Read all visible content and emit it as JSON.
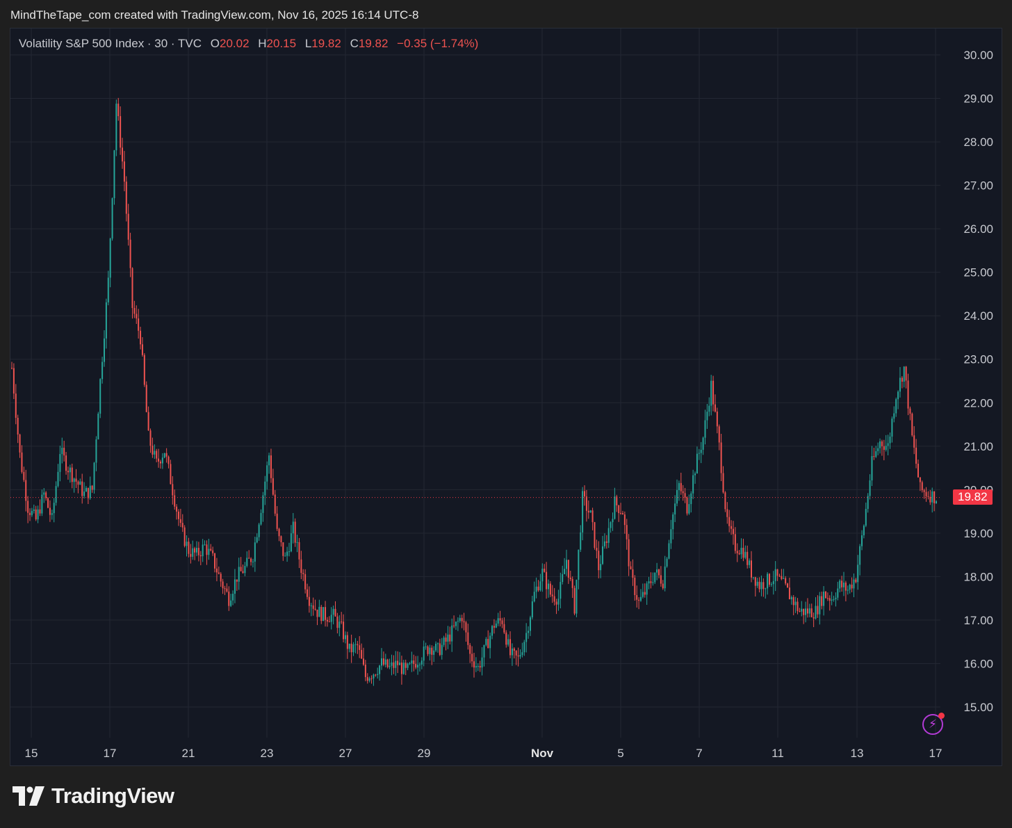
{
  "header": {
    "attribution": "MindTheTape_com created with TradingView.com, Nov 16, 2025 16:14 UTC-8"
  },
  "legend": {
    "symbol": "Volatility S&P 500 Index · 30 · TVC",
    "open_label": "O",
    "open": "20.02",
    "high_label": "H",
    "high": "20.15",
    "low_label": "L",
    "low": "19.82",
    "close_label": "C",
    "close": "19.82",
    "change": "−0.35 (−1.74%)"
  },
  "last_price_tag": "19.82",
  "footer": {
    "brand": "TradingView"
  },
  "colors": {
    "up": "#26a69a",
    "down": "#ef5350",
    "background": "#141823",
    "grid": "#232733",
    "price_line": "#f23645"
  },
  "icons": {
    "quick-trade": "lightning-bolt-icon"
  },
  "chart_data": {
    "type": "candlestick",
    "interval": "30",
    "last_price": 19.82,
    "y_ticks": [
      "15.00",
      "16.00",
      "17.00",
      "18.00",
      "19.00",
      "20.00",
      "21.00",
      "22.00",
      "23.00",
      "24.00",
      "25.00",
      "26.00",
      "27.00",
      "28.00",
      "29.00",
      "30.00"
    ],
    "ylim": [
      14.0,
      30.5
    ],
    "x_ticks": [
      "15",
      "17",
      "21",
      "23",
      "27",
      "29",
      "Nov",
      "5",
      "7",
      "11",
      "13",
      "17"
    ],
    "grid": true,
    "series": [
      {
        "close": [
          [
            "15",
            22.8
          ],
          [
            "15",
            20.8
          ],
          [
            "15",
            19.6
          ],
          [
            "15",
            19.3
          ],
          [
            "15",
            19.9
          ],
          [
            "15",
            19.3
          ],
          [
            "16",
            20.9
          ],
          [
            "16",
            20.5
          ],
          [
            "16",
            20.2
          ],
          [
            "16",
            19.9
          ],
          [
            "16",
            20.0
          ],
          [
            "17",
            22.5
          ],
          [
            "17",
            24.8
          ],
          [
            "17",
            28.9
          ],
          [
            "17",
            27.1
          ],
          [
            "17",
            24.2
          ],
          [
            "20",
            23.5
          ],
          [
            "20",
            21.2
          ],
          [
            "20",
            20.6
          ],
          [
            "20",
            20.9
          ],
          [
            "20",
            20.0
          ],
          [
            "21",
            19.1
          ],
          [
            "21",
            18.6
          ],
          [
            "21",
            18.5
          ],
          [
            "21",
            18.7
          ],
          [
            "21",
            18.4
          ],
          [
            "22",
            17.9
          ],
          [
            "22",
            17.5
          ],
          [
            "22",
            18.0
          ],
          [
            "22",
            18.2
          ],
          [
            "22",
            18.5
          ],
          [
            "23",
            19.6
          ],
          [
            "23",
            20.8
          ],
          [
            "23",
            19.0
          ],
          [
            "23",
            18.4
          ],
          [
            "23",
            19.1
          ],
          [
            "24",
            18.2
          ],
          [
            "24",
            17.5
          ],
          [
            "24",
            17.2
          ],
          [
            "24",
            17.1
          ],
          [
            "24",
            17.1
          ],
          [
            "27",
            16.8
          ],
          [
            "27",
            16.3
          ],
          [
            "27",
            16.4
          ],
          [
            "27",
            15.7
          ],
          [
            "27",
            15.8
          ],
          [
            "28",
            16.0
          ],
          [
            "28",
            15.9
          ],
          [
            "28",
            16.0
          ],
          [
            "28",
            15.8
          ],
          [
            "28",
            16.0
          ],
          [
            "29",
            16.2
          ],
          [
            "29",
            16.4
          ],
          [
            "29",
            16.3
          ],
          [
            "29",
            16.5
          ],
          [
            "29",
            16.8
          ],
          [
            "30",
            17.1
          ],
          [
            "30",
            16.2
          ],
          [
            "30",
            15.9
          ],
          [
            "30",
            16.4
          ],
          [
            "30",
            16.9
          ],
          [
            "31",
            17.0
          ],
          [
            "31",
            16.2
          ],
          [
            "31",
            16.1
          ],
          [
            "31",
            16.7
          ],
          [
            "31",
            17.6
          ],
          [
            "Nov 3",
            18.1
          ],
          [
            "Nov 3",
            17.6
          ],
          [
            "Nov 3",
            17.5
          ],
          [
            "Nov 3",
            18.4
          ],
          [
            "Nov 3",
            17.3
          ],
          [
            "Nov 4",
            19.8
          ],
          [
            "Nov 4",
            19.4
          ],
          [
            "Nov 4",
            18.2
          ],
          [
            "Nov 4",
            18.9
          ],
          [
            "Nov 4",
            19.7
          ],
          [
            "Nov 5",
            19.5
          ],
          [
            "Nov 5",
            18.0
          ],
          [
            "Nov 5",
            17.4
          ],
          [
            "Nov 5",
            17.7
          ],
          [
            "Nov 5",
            18.1
          ],
          [
            "Nov 6",
            17.9
          ],
          [
            "Nov 6",
            19.2
          ],
          [
            "Nov 6",
            20.1
          ],
          [
            "Nov 6",
            19.6
          ],
          [
            "Nov 6",
            20.5
          ],
          [
            "Nov 7",
            21.2
          ],
          [
            "Nov 7",
            22.4
          ],
          [
            "Nov 7",
            21.0
          ],
          [
            "Nov 7",
            19.2
          ],
          [
            "Nov 7",
            18.7
          ],
          [
            "Nov 10",
            18.6
          ],
          [
            "Nov 10",
            18.1
          ],
          [
            "Nov 10",
            17.8
          ],
          [
            "Nov 10",
            17.9
          ],
          [
            "Nov 10",
            18.0
          ],
          [
            "Nov 11",
            17.8
          ],
          [
            "Nov 11",
            17.5
          ],
          [
            "Nov 11",
            17.2
          ],
          [
            "Nov 11",
            17.2
          ],
          [
            "Nov 11",
            17.2
          ],
          [
            "Nov 12",
            17.6
          ],
          [
            "Nov 12",
            17.5
          ],
          [
            "Nov 12",
            17.8
          ],
          [
            "Nov 12",
            17.7
          ],
          [
            "Nov 12",
            18.0
          ],
          [
            "Nov 13",
            19.2
          ],
          [
            "Nov 13",
            20.6
          ],
          [
            "Nov 13",
            21.1
          ],
          [
            "Nov 13",
            21.0
          ],
          [
            "Nov 13",
            22.2
          ],
          [
            "Nov 14",
            22.8
          ],
          [
            "Nov 14",
            21.2
          ],
          [
            "Nov 14",
            20.0
          ],
          [
            "Nov 14",
            19.9
          ],
          [
            "Nov 14",
            19.82
          ]
        ]
      }
    ]
  }
}
